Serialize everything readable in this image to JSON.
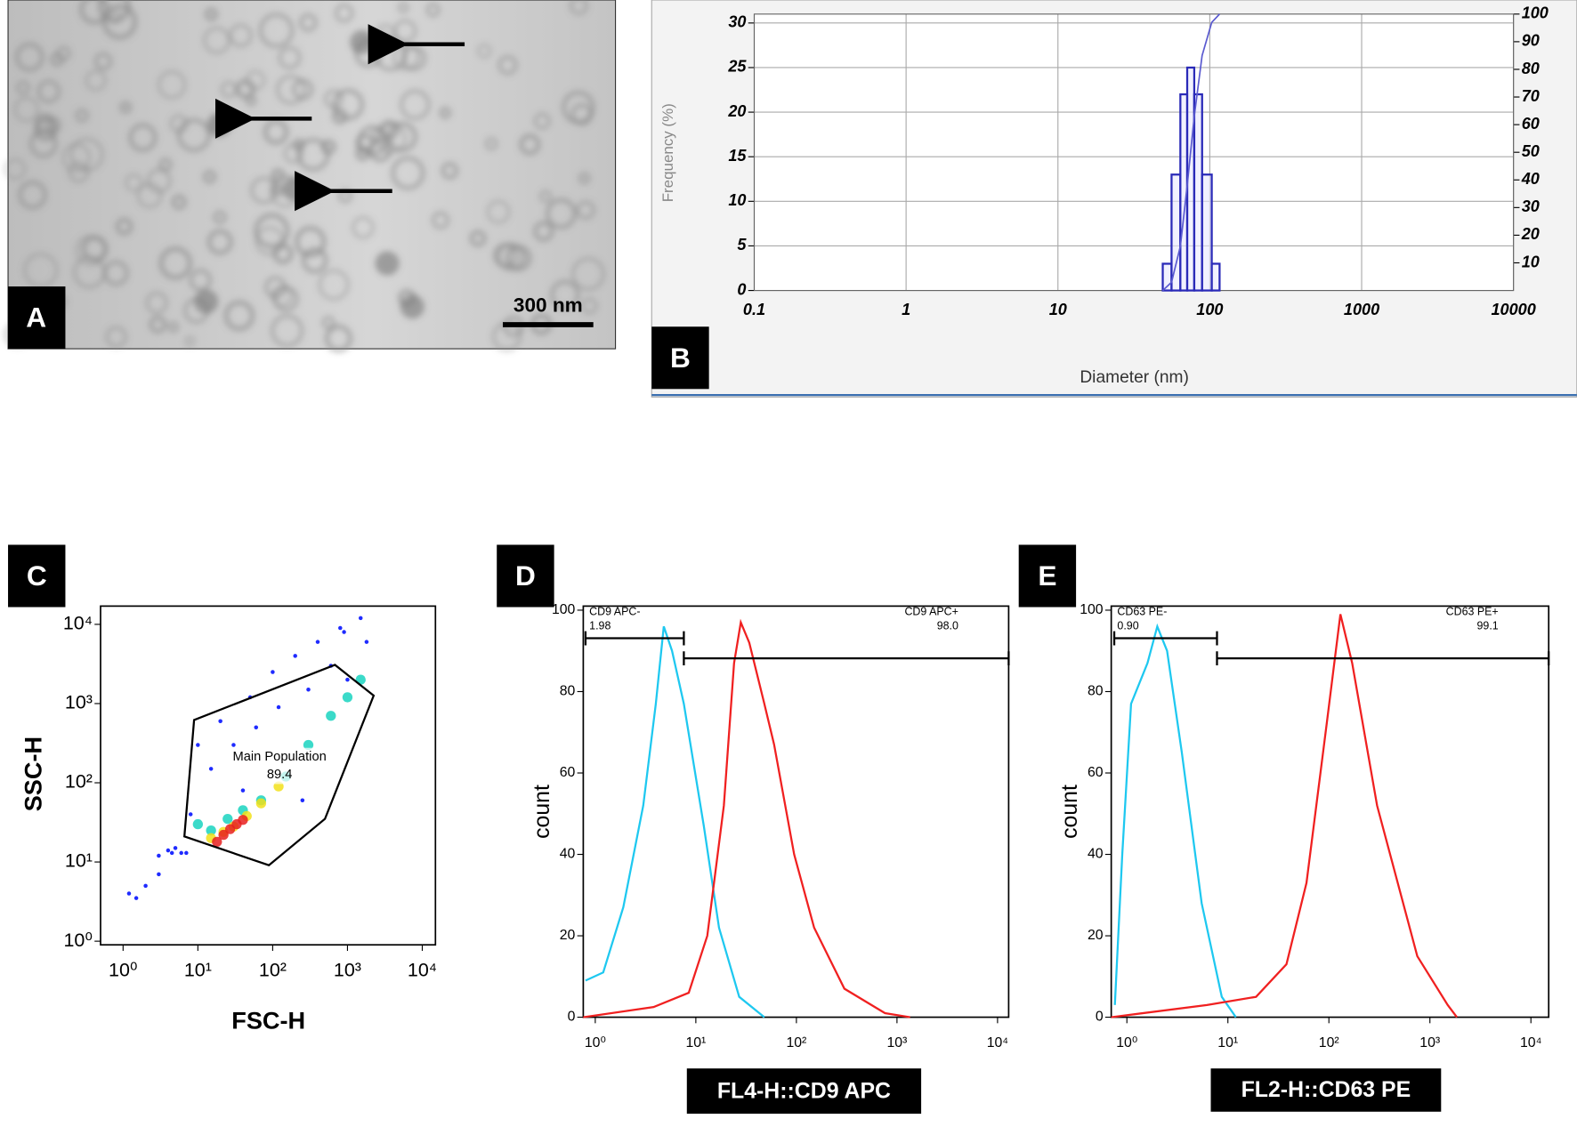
{
  "panel_a": {
    "label": "A",
    "scale_bar": "300 nm"
  },
  "chart_data": [
    {
      "type": "histogram",
      "panel": "B",
      "ylabel": "Frequency (%)",
      "xlabel": "Diameter (nm)",
      "xscale": "log",
      "xlim": [
        0.1,
        10000
      ],
      "xticks": [
        0.1,
        1,
        10,
        100,
        1000,
        10000
      ],
      "ylim": [
        0,
        31
      ],
      "yticks": [
        0,
        5,
        10,
        15,
        20,
        25,
        30
      ],
      "y2lim": [
        0,
        100
      ],
      "y2ticks": [
        10,
        20,
        30,
        40,
        50,
        60,
        70,
        80,
        90,
        100
      ],
      "grid": true,
      "color": "#2a2ab8",
      "bins": [
        49,
        56,
        64,
        71,
        79,
        89,
        103,
        116
      ],
      "counts": [
        3,
        13,
        22,
        25,
        22,
        13,
        3
      ],
      "series": [
        {
          "color": "#5a5ad0",
          "axis": "y2",
          "x": [
            49,
            56,
            64,
            71,
            79,
            89,
            103,
            116
          ],
          "values": [
            0,
            3,
            16,
            38,
            63,
            85,
            97,
            100
          ]
        }
      ]
    },
    {
      "type": "scatter",
      "panel": "C",
      "xlabel": "FSC-H",
      "ylabel": "SSC-H",
      "xscale": "log",
      "yscale": "log",
      "xlim": [
        0.5,
        15000
      ],
      "ylim": [
        0.9,
        17000
      ],
      "xticks": [
        {
          "value": 1,
          "label": "10⁰"
        },
        {
          "value": 10,
          "label": "10¹"
        },
        {
          "value": 100,
          "label": "10²"
        },
        {
          "value": 1000,
          "label": "10³"
        },
        {
          "value": 10000,
          "label": "10⁴"
        }
      ],
      "yticks": [
        {
          "value": 1,
          "label": "10⁰"
        },
        {
          "value": 10,
          "label": "10¹"
        },
        {
          "value": 100,
          "label": "10²"
        },
        {
          "value": 1000,
          "label": "10³"
        },
        {
          "value": 10000,
          "label": "10⁴"
        }
      ],
      "series": [
        {
          "color": "#1f2bff",
          "x": [
            2,
            3,
            5,
            8,
            15,
            30,
            60,
            120,
            300,
            600,
            900,
            1500,
            4,
            6,
            10,
            20,
            50,
            100,
            200,
            400,
            800,
            1.2,
            1.5,
            4.5,
            7,
            40,
            250,
            1000,
            1800,
            3
          ],
          "values": [
            5,
            12,
            15,
            40,
            150,
            300,
            500,
            900,
            1500,
            3000,
            8000,
            12000,
            14,
            13,
            300,
            600,
            1200,
            2500,
            4000,
            6000,
            9000,
            4,
            3.5,
            13,
            13,
            80,
            60,
            2000,
            6000,
            7
          ]
        },
        {
          "color": "#19d3c0",
          "x": [
            10,
            15,
            25,
            40,
            70,
            150,
            300,
            600,
            1000,
            1500
          ],
          "values": [
            30,
            25,
            35,
            45,
            60,
            120,
            300,
            700,
            1200,
            2000
          ]
        },
        {
          "color": "#f2e01a",
          "x": [
            15,
            22,
            30,
            45,
            70,
            120
          ],
          "values": [
            20,
            24,
            28,
            38,
            55,
            90
          ]
        },
        {
          "color": "#e82020",
          "x": [
            18,
            22,
            27,
            33,
            40
          ],
          "values": [
            18,
            22,
            26,
            30,
            34
          ]
        }
      ],
      "gate": {
        "label": "Main Population",
        "value": 89.4,
        "x": [
          8.9,
          680,
          2240,
          500,
          89,
          6.6
        ],
        "y": [
          620,
          3080,
          1260,
          35,
          9.1,
          21
        ]
      }
    },
    {
      "type": "line",
      "panel": "D",
      "xlabel": "FL4-H::CD9 APC",
      "ylabel": "count",
      "xscale": "log",
      "xlim": [
        0.76,
        12900
      ],
      "ylim": [
        0,
        101
      ],
      "xticks": [
        {
          "value": 1,
          "label": "10⁰"
        },
        {
          "value": 10,
          "label": "10¹"
        },
        {
          "value": 100,
          "label": "10²"
        },
        {
          "value": 1000,
          "label": "10³"
        },
        {
          "value": 10000,
          "label": "10⁴"
        }
      ],
      "yticks": [
        0,
        20,
        40,
        60,
        80,
        100
      ],
      "series": [
        {
          "color": "#1ec8f0",
          "x": [
            0.8,
            1.2,
            1.9,
            3.0,
            4.0,
            4.8,
            5.8,
            7.6,
            12,
            17,
            27,
            48
          ],
          "values": [
            9,
            11,
            27,
            52,
            77,
            96,
            90,
            77,
            47,
            22,
            5,
            0
          ]
        },
        {
          "color": "#f02020",
          "x": [
            0.76,
            3.8,
            8.5,
            13,
            19,
            24,
            28,
            34,
            48,
            60,
            95,
            150,
            300,
            760,
            1350
          ],
          "values": [
            0,
            2.5,
            6,
            20,
            52,
            87,
            97,
            92,
            77,
            67,
            40,
            22,
            7,
            1,
            0
          ]
        }
      ],
      "gates": [
        {
          "label": "CD9 APC-",
          "value": 1.98,
          "range": [
            0.8,
            7.6
          ]
        },
        {
          "label": "CD9 APC+",
          "value": 98,
          "value_label": "98.0",
          "range": [
            7.6,
            12900
          ]
        }
      ]
    },
    {
      "type": "line",
      "panel": "E",
      "xlabel": "FL2-H::CD63 PE",
      "ylabel": "count",
      "xscale": "log",
      "xlim": [
        0.7,
        15000
      ],
      "ylim": [
        0,
        101
      ],
      "xticks": [
        {
          "value": 1,
          "label": "10⁰"
        },
        {
          "value": 10,
          "label": "10¹"
        },
        {
          "value": 100,
          "label": "10²"
        },
        {
          "value": 1000,
          "label": "10³"
        },
        {
          "value": 10000,
          "label": "10⁴"
        }
      ],
      "yticks": [
        0,
        20,
        40,
        60,
        80,
        100
      ],
      "series": [
        {
          "color": "#1ec8f0",
          "x": [
            0.76,
            0.9,
            1.1,
            1.6,
            2.0,
            2.5,
            3.5,
            5.5,
            8.7,
            12
          ],
          "values": [
            3,
            40,
            77,
            87,
            96,
            90,
            65,
            28,
            5,
            0
          ]
        },
        {
          "color": "#f02020",
          "x": [
            0.7,
            6.2,
            19,
            38,
            60,
            95,
            130,
            170,
            300,
            750,
            1500,
            1850
          ],
          "values": [
            0,
            3,
            5,
            13,
            33,
            72,
            99,
            87,
            52,
            15,
            3,
            0
          ]
        }
      ],
      "gates": [
        {
          "label": "CD63 PE-",
          "value": 0.9,
          "value_label": "0.90",
          "range": [
            0.75,
            7.8
          ]
        },
        {
          "label": "CD63 PE+",
          "value": 99.1,
          "range": [
            7.8,
            15000
          ]
        }
      ]
    }
  ]
}
